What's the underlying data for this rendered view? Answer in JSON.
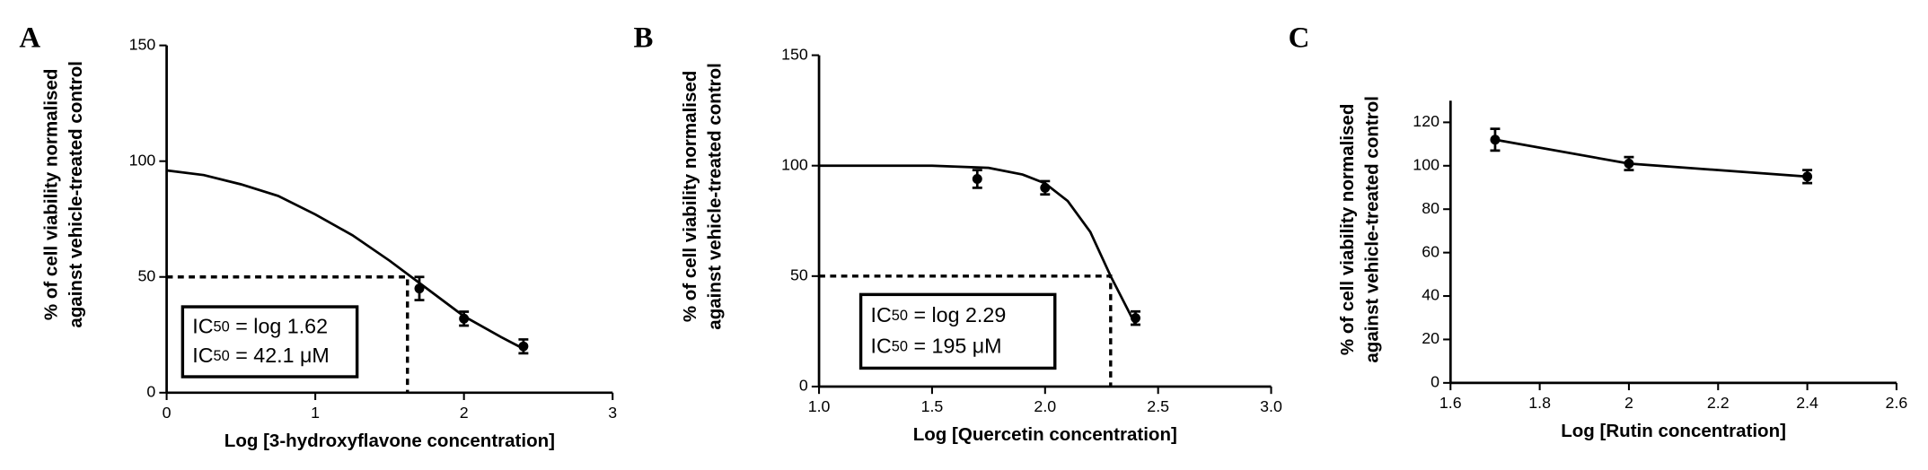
{
  "chart_data": [
    {
      "type": "fit",
      "panel_label": "A",
      "x_label": "Log [3-hydroxyflavone concentration]",
      "y_label": [
        "% of cell viability normalised",
        "against vehicle-treated control"
      ],
      "x": [
        1.7,
        2.0,
        2.4
      ],
      "values": [
        45,
        32,
        20
      ],
      "errors": [
        5,
        3,
        3
      ],
      "fit": {
        "x": [
          0,
          0.25,
          0.5,
          0.75,
          1,
          1.25,
          1.5,
          1.75,
          2,
          2.25,
          2.4
        ],
        "y": [
          96,
          94,
          90,
          85,
          77,
          68,
          57,
          45,
          33,
          24,
          19
        ]
      },
      "ic50": 1.62,
      "ic50_level": 50,
      "annotation": [
        {
          "prefix": "IC",
          "sub": "50",
          "text": " = log 1.62"
        },
        {
          "prefix": "IC",
          "sub": "50",
          "text": " = 42.1 μM"
        }
      ],
      "xlim": [
        0,
        3
      ],
      "xticks": [
        0,
        1,
        2,
        3
      ],
      "ylim": [
        0,
        150
      ],
      "yticks": [
        0,
        50,
        100,
        150
      ]
    },
    {
      "type": "fit",
      "panel_label": "B",
      "x_label": "Log [Quercetin concentration]",
      "y_label": [
        "% of cell viability normalised",
        "against vehicle-treated control"
      ],
      "x": [
        1.7,
        2.0,
        2.4
      ],
      "values": [
        94,
        90,
        31
      ],
      "errors": [
        4,
        3,
        3
      ],
      "fit": {
        "x": [
          1,
          1.25,
          1.5,
          1.75,
          1.9,
          2,
          2.1,
          2.2,
          2.29,
          2.4
        ],
        "y": [
          100,
          100,
          100,
          99,
          96,
          92,
          84,
          70,
          50,
          28
        ]
      },
      "ic50": 2.29,
      "ic50_level": 50,
      "annotation": [
        {
          "prefix": "IC",
          "sub": "50",
          "text": " = log 2.29"
        },
        {
          "prefix": "IC",
          "sub": "50",
          "text": " = 195 μM"
        }
      ],
      "xlim": [
        1,
        3
      ],
      "xticks": [
        {
          "value": 1,
          "label": "1.0"
        },
        {
          "value": 1.5,
          "label": "1.5"
        },
        {
          "value": 2,
          "label": "2.0"
        },
        {
          "value": 2.5,
          "label": "2.5"
        },
        {
          "value": 3,
          "label": "3.0"
        }
      ],
      "ylim": [
        0,
        150
      ],
      "yticks": [
        0,
        50,
        100,
        150
      ]
    },
    {
      "type": "line",
      "panel_label": "C",
      "x_label": "Log [Rutin concentration]",
      "y_label": [
        "% of cell viability normalised",
        "against vehicle-treated control"
      ],
      "x": [
        1.7,
        2.0,
        2.4
      ],
      "values": [
        112,
        101,
        95
      ],
      "errors": [
        5,
        3,
        3
      ],
      "xlim": [
        1.6,
        2.6
      ],
      "xticks": [
        1.6,
        1.8,
        2,
        2.2,
        2.4,
        2.6
      ],
      "ylim": [
        0,
        130
      ],
      "yticks": [
        0,
        20,
        40,
        60,
        80,
        100,
        120
      ]
    }
  ]
}
